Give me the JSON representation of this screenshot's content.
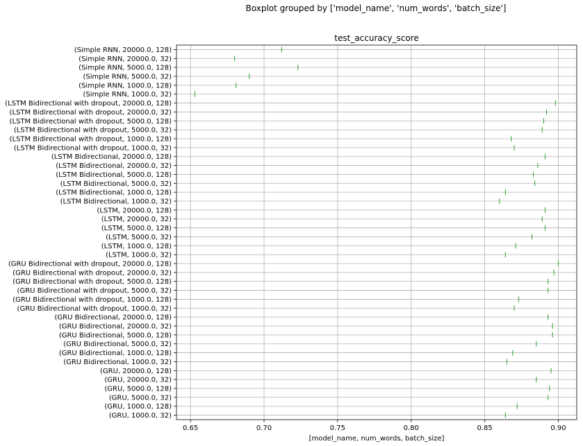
{
  "suptitle": "Boxplot grouped by ['model_name', 'num_words', 'batch_size']",
  "chart_data": {
    "type": "boxplot",
    "orientation": "horizontal",
    "title": "test_accuracy_score",
    "xlabel": "[model_name, num_words, batch_size]",
    "ylabel": "",
    "xlim": [
      0.6405,
      0.9125
    ],
    "xticks": [
      0.65,
      0.7,
      0.75,
      0.8,
      0.85,
      0.9
    ],
    "xtick_labels": [
      "0.65",
      "0.70",
      "0.75",
      "0.80",
      "0.85",
      "0.90"
    ],
    "grid": true,
    "color": "#2ca02c",
    "categories": [
      "(Simple RNN, 20000.0, 128)",
      "(Simple RNN, 20000.0, 32)",
      "(Simple RNN, 5000.0, 128)",
      "(Simple RNN, 5000.0, 32)",
      "(Simple RNN, 1000.0, 128)",
      "(Simple RNN, 1000.0, 32)",
      "(LSTM Bidirectional with dropout, 20000.0, 128)",
      "(LSTM Bidirectional with dropout, 20000.0, 32)",
      "(LSTM Bidirectional with dropout, 5000.0, 128)",
      "(LSTM Bidirectional with dropout, 5000.0, 32)",
      "(LSTM Bidirectional with dropout, 1000.0, 128)",
      "(LSTM Bidirectional with dropout, 1000.0, 32)",
      "(LSTM Bidirectional, 20000.0, 128)",
      "(LSTM Bidirectional, 20000.0, 32)",
      "(LSTM Bidirectional, 5000.0, 128)",
      "(LSTM Bidirectional, 5000.0, 32)",
      "(LSTM Bidirectional, 1000.0, 128)",
      "(LSTM Bidirectional, 1000.0, 32)",
      "(LSTM, 20000.0, 128)",
      "(LSTM, 20000.0, 32)",
      "(LSTM, 5000.0, 128)",
      "(LSTM, 5000.0, 32)",
      "(LSTM, 1000.0, 128)",
      "(LSTM, 1000.0, 32)",
      "(GRU Bidirectional with dropout, 20000.0, 128)",
      "(GRU Bidirectional with dropout, 20000.0, 32)",
      "(GRU Bidirectional with dropout, 5000.0, 128)",
      "(GRU Bidirectional with dropout, 5000.0, 32)",
      "(GRU Bidirectional with dropout, 1000.0, 128)",
      "(GRU Bidirectional with dropout, 1000.0, 32)",
      "(GRU Bidirectional, 20000.0, 128)",
      "(GRU Bidirectional, 20000.0, 32)",
      "(GRU Bidirectional, 5000.0, 128)",
      "(GRU Bidirectional, 5000.0, 32)",
      "(GRU Bidirectional, 1000.0, 128)",
      "(GRU Bidirectional, 1000.0, 32)",
      "(GRU, 20000.0, 128)",
      "(GRU, 20000.0, 32)",
      "(GRU, 5000.0, 128)",
      "(GRU, 5000.0, 32)",
      "(GRU, 1000.0, 128)",
      "(GRU, 1000.0, 32)"
    ],
    "values": [
      0.712,
      0.68,
      0.723,
      0.69,
      0.681,
      0.653,
      0.898,
      0.892,
      0.89,
      0.889,
      0.868,
      0.87,
      0.891,
      0.886,
      0.883,
      0.884,
      0.864,
      0.86,
      0.891,
      0.889,
      0.891,
      0.882,
      0.871,
      0.864,
      0.9,
      0.897,
      0.893,
      0.893,
      0.873,
      0.87,
      0.893,
      0.896,
      0.896,
      0.885,
      0.869,
      0.865,
      0.895,
      0.885,
      0.894,
      0.893,
      0.872,
      0.864
    ]
  }
}
